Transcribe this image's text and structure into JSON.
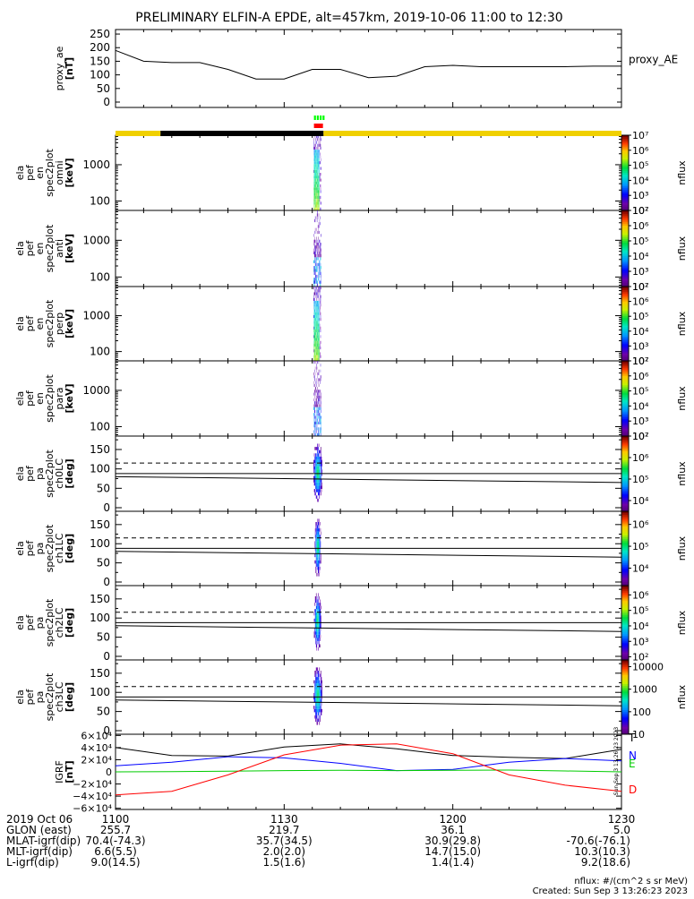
{
  "title": "PRELIMINARY ELFIN-A EPDE, alt=457km, 2019-10-06 11:00 to 12:30",
  "chart_data": [
    {
      "type": "line",
      "id": "proxy_ae",
      "ylabel_lines": [
        "proxy_ae",
        "[nT]"
      ],
      "ylim": [
        0,
        260
      ],
      "yticks": [
        "0",
        "50",
        "100",
        "150",
        "200",
        "250"
      ],
      "ytick_values": [
        0,
        50,
        100,
        150,
        200,
        250
      ],
      "series": [
        {
          "name": "proxy_AE",
          "x_minutes": [
            0,
            5,
            10,
            15,
            20,
            25,
            30,
            35,
            40,
            45,
            50,
            55,
            60,
            65,
            70,
            75,
            80,
            85,
            90
          ],
          "values": [
            190,
            150,
            145,
            145,
            120,
            85,
            85,
            120,
            120,
            90,
            95,
            130,
            135,
            130,
            130,
            130,
            130,
            132,
            132
          ]
        }
      ]
    },
    {
      "type": "heatmap",
      "id": "omni",
      "ylabel_lines": [
        "ela",
        "pef",
        "en",
        "spec2plot",
        "omni",
        "[keV]"
      ],
      "yticks": [
        "100",
        "1000"
      ],
      "colorbar": {
        "label": "nflux",
        "ticks": [
          "10²",
          "10³",
          "10⁴",
          "10⁵",
          "10⁶",
          "10⁷"
        ],
        "range": [
          2,
          7
        ]
      },
      "x_range_minutes": [
        35.2,
        36.6
      ],
      "level": "high"
    },
    {
      "type": "heatmap",
      "id": "anti",
      "ylabel_lines": [
        "ela",
        "pef",
        "en",
        "spec2plot",
        "anti",
        "[keV]"
      ],
      "yticks": [
        "100",
        "1000"
      ],
      "colorbar": {
        "label": "nflux",
        "ticks": [
          "10²",
          "10³",
          "10⁴",
          "10⁵",
          "10⁶",
          "10⁷"
        ],
        "range": [
          2,
          7
        ]
      },
      "x_range_minutes": [
        35.2,
        36.6
      ],
      "level": "low"
    },
    {
      "type": "heatmap",
      "id": "perp",
      "ylabel_lines": [
        "ela",
        "pef",
        "en",
        "spec2plot",
        "perp",
        "[keV]"
      ],
      "yticks": [
        "100",
        "1000"
      ],
      "colorbar": {
        "label": "nflux",
        "ticks": [
          "10²",
          "10³",
          "10⁴",
          "10⁵",
          "10⁶",
          "10⁷"
        ],
        "range": [
          2,
          7
        ]
      },
      "x_range_minutes": [
        35.2,
        36.6
      ],
      "level": "high"
    },
    {
      "type": "heatmap",
      "id": "para",
      "ylabel_lines": [
        "ela",
        "pef",
        "en",
        "spec2plot",
        "para",
        "[keV]"
      ],
      "yticks": [
        "100",
        "1000"
      ],
      "colorbar": {
        "label": "nflux",
        "ticks": [
          "10²",
          "10³",
          "10⁴",
          "10⁵",
          "10⁶",
          "10⁷"
        ],
        "range": [
          2,
          7
        ]
      },
      "x_range_minutes": [
        35.2,
        36.6
      ],
      "level": "low"
    },
    {
      "type": "heatmap",
      "id": "ch0LC",
      "ylabel_lines": [
        "ela",
        "pef",
        "pa",
        "spec2plot",
        "ch0LC",
        "[deg]"
      ],
      "yticks": [
        "0",
        "50",
        "100",
        "150"
      ],
      "ytick_values": [
        0,
        50,
        100,
        150
      ],
      "ylim": [
        0,
        180
      ],
      "colorbar": {
        "label": "nflux",
        "ticks": [
          "10⁴",
          "10⁵",
          "10⁶",
          "10⁷"
        ],
        "range": [
          3.5,
          7
        ]
      },
      "x_range_minutes": [
        35.2,
        36.8
      ],
      "lines": {
        "dashed": 115,
        "solid_flat": 88,
        "solid_sloped": [
          80,
          65
        ]
      }
    },
    {
      "type": "heatmap",
      "id": "ch1LC",
      "ylabel_lines": [
        "ela",
        "pef",
        "pa",
        "spec2plot",
        "ch1LC",
        "[deg]"
      ],
      "yticks": [
        "0",
        "50",
        "100",
        "150"
      ],
      "ytick_values": [
        0,
        50,
        100,
        150
      ],
      "ylim": [
        0,
        180
      ],
      "colorbar": {
        "label": "nflux",
        "ticks": [
          "10⁴",
          "10⁵",
          "10⁶"
        ],
        "range": [
          3.2,
          6.6
        ]
      },
      "x_range_minutes": [
        35.4,
        36.6
      ],
      "lines": {
        "dashed": 115,
        "solid_flat": 88,
        "solid_sloped": [
          80,
          65
        ]
      }
    },
    {
      "type": "heatmap",
      "id": "ch2LC",
      "ylabel_lines": [
        "ela",
        "pef",
        "pa",
        "spec2plot",
        "ch2LC",
        "[deg]"
      ],
      "yticks": [
        "0",
        "50",
        "100",
        "150"
      ],
      "ytick_values": [
        0,
        50,
        100,
        150
      ],
      "ylim": [
        0,
        180
      ],
      "colorbar": {
        "label": "nflux",
        "ticks": [
          "10²",
          "10³",
          "10⁴",
          "10⁵",
          "10⁶"
        ],
        "range": [
          1.8,
          6.6
        ]
      },
      "x_range_minutes": [
        35.3,
        36.6
      ],
      "lines": {
        "dashed": 115,
        "solid_flat": 88,
        "solid_sloped": [
          80,
          65
        ]
      }
    },
    {
      "type": "heatmap",
      "id": "ch3LC",
      "ylabel_lines": [
        "ela",
        "pef",
        "pa",
        "spec2plot",
        "ch3LC",
        "[deg]"
      ],
      "yticks": [
        "0",
        "50",
        "100",
        "150"
      ],
      "ytick_values": [
        0,
        50,
        100,
        150
      ],
      "ylim": [
        0,
        180
      ],
      "colorbar": {
        "label": "nflux",
        "ticks": [
          "10",
          "100",
          "1000",
          "10000"
        ],
        "range": [
          1,
          4.3
        ]
      },
      "x_range_minutes": [
        35.2,
        36.8
      ],
      "lines": {
        "dashed": 115,
        "solid_flat": 88,
        "solid_sloped": [
          80,
          65
        ]
      }
    },
    {
      "type": "line",
      "id": "igrf",
      "ylabel_lines": [
        "IGRF",
        "[nT]"
      ],
      "yticks": [
        "−6×10⁴",
        "−4×10⁴",
        "−2×10⁴",
        "0",
        "2×10⁴",
        "4×10⁴",
        "6×10⁴"
      ],
      "ytick_values": [
        -60000,
        -40000,
        -20000,
        0,
        20000,
        40000,
        60000
      ],
      "ylim": [
        -62000,
        62000
      ],
      "series": [
        {
          "name": "T",
          "color": "#000000",
          "x_minutes": [
            0,
            10,
            20,
            30,
            40,
            50,
            60,
            70,
            80,
            90
          ],
          "values": [
            40000,
            27000,
            26000,
            41000,
            46000,
            38000,
            27000,
            24000,
            22000,
            37000
          ]
        },
        {
          "name": "N",
          "color": "#0000ff",
          "x_minutes": [
            0,
            10,
            20,
            30,
            40,
            50,
            60,
            70,
            80,
            90
          ],
          "values": [
            10000,
            16000,
            25000,
            23000,
            14000,
            2000,
            4000,
            16000,
            22000,
            18000
          ]
        },
        {
          "name": "E",
          "color": "#00cc00",
          "x_minutes": [
            0,
            10,
            20,
            30,
            40,
            50,
            60,
            70,
            80,
            90
          ],
          "values": [
            0,
            500,
            1000,
            2000,
            2500,
            2000,
            2500,
            3000,
            1500,
            0
          ]
        },
        {
          "name": "D",
          "color": "#ff0000",
          "x_minutes": [
            0,
            10,
            20,
            30,
            40,
            50,
            60,
            70,
            80,
            90
          ],
          "values": [
            -38000,
            -32000,
            -5000,
            28000,
            44000,
            46000,
            30000,
            -5000,
            -22000,
            -32000
          ]
        }
      ]
    }
  ],
  "orbit_bar": {
    "segments": [
      {
        "from": 0,
        "to": 8,
        "color": "#f0d000"
      },
      {
        "from": 8,
        "to": 37,
        "color": "#000000"
      },
      {
        "from": 37,
        "to": 90,
        "color": "#f0d000"
      }
    ],
    "markers": [
      {
        "from": 35.3,
        "to": 36.9,
        "color": "#ff0000"
      },
      {
        "from": 35.3,
        "to": 36.9,
        "color": "#00ff00"
      }
    ]
  },
  "x_axis": {
    "ticks": [
      {
        "minute": 0,
        "label": "1100"
      },
      {
        "minute": 30,
        "label": "1130"
      },
      {
        "minute": 60,
        "label": "1200"
      },
      {
        "minute": 90,
        "label": "1230"
      }
    ]
  },
  "ephemeris": {
    "rows": [
      {
        "label": "2019 Oct 06",
        "values": [
          "",
          "",
          "",
          ""
        ]
      },
      {
        "label": "GLON (east)",
        "values": [
          "255.7",
          "219.7",
          "36.1",
          "5.0"
        ]
      },
      {
        "label": "MLAT-igrf(dip)",
        "values": [
          "70.4(-74.3)",
          "35.7(34.5)",
          "30.9(29.8)",
          "-70.6(-76.1)"
        ]
      },
      {
        "label": "MLT-igrf(dip)",
        "values": [
          "6.6(5.5)",
          "2.0(2.0)",
          "14.7(15.0)",
          "10.3(10.3)"
        ]
      },
      {
        "label": "L-igrf(dip)",
        "values": [
          "9.0(14.5)",
          "1.5(1.6)",
          "1.4(1.4)",
          "9.2(18.6)"
        ]
      }
    ]
  },
  "footer": {
    "nflux_units": "nflux: #/(cm^2 s sr MeV)",
    "created": "Created: Sun Sep  3 13:26:23 2023",
    "side_stamp": "Sun Sep  3 13:26:23 2023"
  }
}
